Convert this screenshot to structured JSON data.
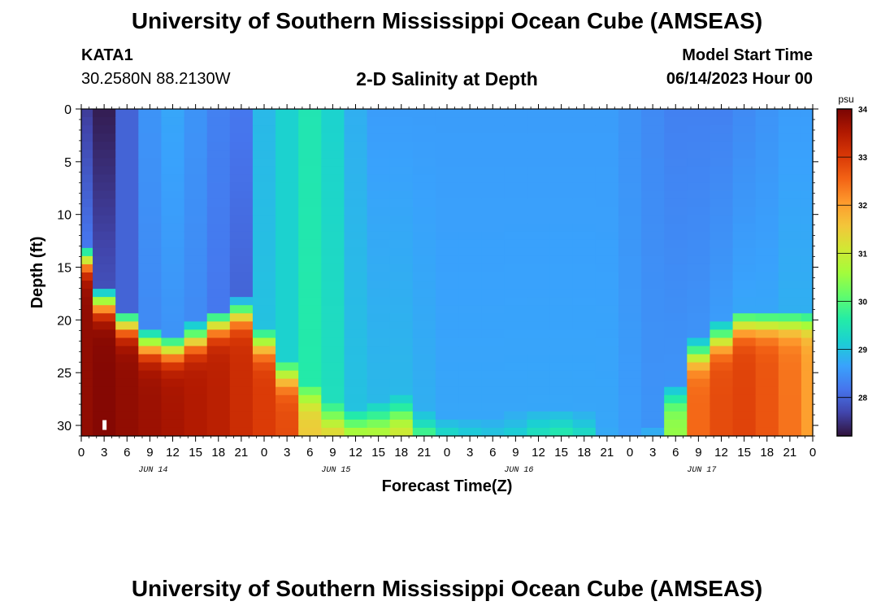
{
  "header": {
    "title": "University of Southern Mississippi Ocean Cube (AMSEAS)",
    "station_id": "KATA1",
    "location": "30.2580N  88.2130W",
    "plot_title": "2-D Salinity at Depth",
    "start_label": "Model Start Time",
    "start_value": "06/14/2023 Hour 00"
  },
  "footer": {
    "title": "University of Southern Mississippi Ocean Cube (AMSEAS)"
  },
  "chart_data": {
    "type": "heatmap",
    "title": "2-D Salinity at Depth",
    "xlabel": "Forecast Time(Z)",
    "ylabel": "Depth (ft)",
    "x_tick_labels": [
      "0",
      "3",
      "6",
      "9",
      "12",
      "15",
      "18",
      "21",
      "0",
      "3",
      "6",
      "9",
      "12",
      "15",
      "18",
      "21",
      "0",
      "3",
      "6",
      "9",
      "12",
      "15",
      "18",
      "21",
      "0",
      "3",
      "6",
      "9",
      "12",
      "15",
      "18",
      "21",
      "0"
    ],
    "x_hours": [
      0,
      3,
      6,
      9,
      12,
      15,
      18,
      21,
      24,
      27,
      30,
      33,
      36,
      39,
      42,
      45,
      48,
      51,
      54,
      57,
      60,
      63,
      66,
      69,
      72,
      75,
      78,
      81,
      84,
      87,
      90,
      93,
      96
    ],
    "date_labels": [
      {
        "label": "JUN 14",
        "hour": 9
      },
      {
        "label": "JUN 15",
        "hour": 33
      },
      {
        "label": "JUN 16",
        "hour": 57
      },
      {
        "label": "JUN 17",
        "hour": 81
      }
    ],
    "xlim": [
      0,
      96
    ],
    "ylim": [
      0,
      31
    ],
    "y_ticks": [
      0,
      5,
      10,
      15,
      20,
      25,
      30
    ],
    "y_tick_labels": [
      "0",
      "5",
      "10",
      "15",
      "20",
      "25",
      "30"
    ],
    "colorbar": {
      "unit": "psu",
      "range": [
        27.2,
        34
      ],
      "ticks": [
        28,
        29,
        30,
        31,
        32,
        33,
        34
      ],
      "tick_labels": [
        "28",
        "29",
        "30",
        "31",
        "32",
        "33",
        "34"
      ]
    },
    "salinity_columns": [
      {
        "hour": 0,
        "surface": 27.6,
        "mid": 28.2,
        "bottom": 33.8,
        "halocline_ft": 13
      },
      {
        "hour": 3,
        "surface": 27.3,
        "mid": 27.8,
        "bottom": 33.9,
        "halocline_ft": 17
      },
      {
        "hour": 6,
        "surface": 28.0,
        "mid": 28.0,
        "bottom": 33.8,
        "halocline_ft": 19
      },
      {
        "hour": 9,
        "surface": 28.5,
        "mid": 28.4,
        "bottom": 33.7,
        "halocline_ft": 21
      },
      {
        "hour": 12,
        "surface": 28.7,
        "mid": 28.5,
        "bottom": 33.6,
        "halocline_ft": 21.5
      },
      {
        "hour": 15,
        "surface": 28.5,
        "mid": 28.4,
        "bottom": 33.5,
        "halocline_ft": 20.5
      },
      {
        "hour": 18,
        "surface": 28.3,
        "mid": 28.2,
        "bottom": 33.4,
        "halocline_ft": 19
      },
      {
        "hour": 21,
        "surface": 28.2,
        "mid": 28.0,
        "bottom": 33.2,
        "halocline_ft": 18
      },
      {
        "hour": 24,
        "surface": 28.9,
        "mid": 29.0,
        "bottom": 33.0,
        "halocline_ft": 21
      },
      {
        "hour": 27,
        "surface": 29.2,
        "mid": 29.2,
        "bottom": 32.8,
        "halocline_ft": 24
      },
      {
        "hour": 30,
        "surface": 29.5,
        "mid": 29.6,
        "bottom": 31.5,
        "halocline_ft": 26
      },
      {
        "hour": 33,
        "surface": 29.2,
        "mid": 29.4,
        "bottom": 31.6,
        "halocline_ft": 28
      },
      {
        "hour": 36,
        "surface": 28.8,
        "mid": 29.0,
        "bottom": 31.2,
        "halocline_ft": 28.5
      },
      {
        "hour": 39,
        "surface": 28.6,
        "mid": 28.9,
        "bottom": 31.0,
        "halocline_ft": 28
      },
      {
        "hour": 42,
        "surface": 28.6,
        "mid": 28.9,
        "bottom": 31.2,
        "halocline_ft": 27.5
      },
      {
        "hour": 45,
        "surface": 28.6,
        "mid": 28.8,
        "bottom": 30.5,
        "halocline_ft": 29
      },
      {
        "hour": 48,
        "surface": 28.6,
        "mid": 28.7,
        "bottom": 30.0,
        "halocline_ft": 29.5
      },
      {
        "hour": 51,
        "surface": 28.6,
        "mid": 28.7,
        "bottom": 29.6,
        "halocline_ft": 29.5
      },
      {
        "hour": 54,
        "surface": 28.6,
        "mid": 28.7,
        "bottom": 29.4,
        "halocline_ft": 29.5
      },
      {
        "hour": 57,
        "surface": 28.6,
        "mid": 28.7,
        "bottom": 29.4,
        "halocline_ft": 29
      },
      {
        "hour": 60,
        "surface": 28.6,
        "mid": 28.7,
        "bottom": 29.6,
        "halocline_ft": 28.5
      },
      {
        "hour": 63,
        "surface": 28.6,
        "mid": 28.7,
        "bottom": 29.8,
        "halocline_ft": 28.5
      },
      {
        "hour": 66,
        "surface": 28.6,
        "mid": 28.7,
        "bottom": 29.7,
        "halocline_ft": 29
      },
      {
        "hour": 69,
        "surface": 28.6,
        "mid": 28.7,
        "bottom": 28.8,
        "halocline_ft": 30
      },
      {
        "hour": 72,
        "surface": 28.5,
        "mid": 28.6,
        "bottom": 28.7,
        "halocline_ft": 31
      },
      {
        "hour": 75,
        "surface": 28.4,
        "mid": 28.5,
        "bottom": 29.5,
        "halocline_ft": 30
      },
      {
        "hour": 78,
        "surface": 28.3,
        "mid": 28.5,
        "bottom": 30.5,
        "halocline_ft": 26
      },
      {
        "hour": 81,
        "surface": 28.3,
        "mid": 28.5,
        "bottom": 32.5,
        "halocline_ft": 22
      },
      {
        "hour": 84,
        "surface": 28.3,
        "mid": 28.6,
        "bottom": 32.8,
        "halocline_ft": 20.5
      },
      {
        "hour": 87,
        "surface": 28.4,
        "mid": 28.7,
        "bottom": 32.9,
        "halocline_ft": 19
      },
      {
        "hour": 90,
        "surface": 28.5,
        "mid": 28.7,
        "bottom": 32.7,
        "halocline_ft": 19
      },
      {
        "hour": 93,
        "surface": 28.6,
        "mid": 28.8,
        "bottom": 32.4,
        "halocline_ft": 19
      },
      {
        "hour": 96,
        "surface": 28.6,
        "mid": 28.8,
        "bottom": 32.0,
        "halocline_ft": 19
      }
    ],
    "grid": false,
    "legend": "colorbar-right"
  },
  "colors": {
    "colormap": [
      "#30123b",
      "#4145ab",
      "#4675ed",
      "#39a2fc",
      "#1bcfd4",
      "#24eca6",
      "#61fc6c",
      "#a4fc3b",
      "#d1e834",
      "#f3c63a",
      "#fe9b2d",
      "#f36315",
      "#d93806",
      "#b11901",
      "#7a0403"
    ]
  }
}
